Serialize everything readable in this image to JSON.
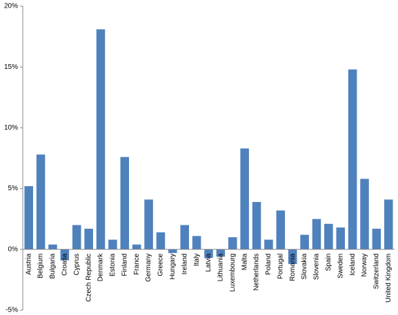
{
  "chart_data": {
    "type": "bar",
    "categories": [
      "Austria",
      "Belgium",
      "Bulgaria",
      "Croatia",
      "Cyprus",
      "Czech Republic",
      "Denmark",
      "Estonia",
      "Finland",
      "France",
      "Germany",
      "Greece",
      "Hungary",
      "Ireland",
      "Italy",
      "Latvia",
      "Lithuania",
      "Luxembourg",
      "Malta",
      "Netherlands",
      "Poland",
      "Portugal",
      "Romania",
      "Slovakia",
      "Slovenia",
      "Spain",
      "Sweden",
      "Iceland",
      "Norway",
      "Switzerland",
      "United Kingdom"
    ],
    "values": [
      5.2,
      7.8,
      0.4,
      -0.9,
      2.0,
      1.7,
      18.1,
      0.8,
      7.6,
      0.4,
      4.1,
      1.4,
      -0.3,
      2.0,
      1.1,
      -0.7,
      -0.6,
      1.0,
      8.3,
      3.9,
      0.8,
      3.2,
      -1.2,
      1.2,
      2.5,
      2.1,
      1.8,
      14.8,
      5.8,
      1.7,
      4.1
    ],
    "color": "#4f81bd",
    "ylim": [
      -5,
      20
    ],
    "yticks": [
      {
        "value": -5,
        "label": "-5%"
      },
      {
        "value": 0,
        "label": "0%"
      },
      {
        "value": 5,
        "label": "5%"
      },
      {
        "value": 10,
        "label": "10%"
      },
      {
        "value": 15,
        "label": "15%"
      },
      {
        "value": 20,
        "label": "20%"
      }
    ],
    "grid": false
  }
}
